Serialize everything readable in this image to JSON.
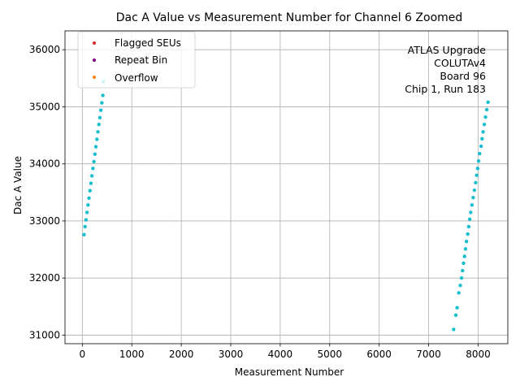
{
  "chart_data": {
    "type": "scatter",
    "title": "Dac A Value vs Measurement Number for Channel 6 Zoomed",
    "xlabel": "Measurement Number",
    "ylabel": "Dac A Value",
    "xlim": [
      -350,
      8600
    ],
    "ylim": [
      30850,
      36330
    ],
    "xticks": [
      0,
      1000,
      2000,
      3000,
      4000,
      5000,
      6000,
      7000,
      8000
    ],
    "yticks": [
      31000,
      32000,
      33000,
      34000,
      35000,
      36000
    ],
    "grid": true,
    "legend_position": "upper-left",
    "legend": [
      {
        "label": "Flagged SEUs",
        "color": "#d62728"
      },
      {
        "label": "Repeat Bin",
        "color": "#7f007f"
      },
      {
        "label": "Overflow",
        "color": "#ff7f0e"
      }
    ],
    "annotation_lines": [
      "ATLAS Upgrade",
      "COLUTAv4",
      "Board 96",
      "Chip 1, Run 183"
    ],
    "series": [
      {
        "color": "#17becf",
        "x": [
          35,
          55,
          75,
          95,
          115,
          135,
          155,
          175,
          195,
          215,
          235,
          255,
          275,
          295,
          315,
          335,
          355,
          375,
          395,
          415,
          425,
          7505,
          7550,
          7575,
          7610,
          7640,
          7665,
          7685,
          7705,
          7725,
          7745,
          7765,
          7790,
          7810,
          7830,
          7850,
          7875,
          7900,
          7925,
          7950,
          7970,
          7990,
          8010,
          8030,
          8060,
          8080,
          8100,
          8125,
          8150,
          8175,
          8200
        ],
        "y": [
          32760,
          32900,
          33020,
          33150,
          33280,
          33400,
          33530,
          33660,
          33790,
          33920,
          34040,
          34170,
          34300,
          34430,
          34560,
          34690,
          34810,
          34940,
          35070,
          35200,
          35440,
          31100,
          31350,
          31480,
          31740,
          31870,
          32000,
          32130,
          32260,
          32380,
          32510,
          32640,
          32770,
          32900,
          33030,
          33150,
          33280,
          33410,
          33540,
          33670,
          33800,
          33920,
          34050,
          34180,
          34310,
          34440,
          34560,
          34690,
          34820,
          34950,
          35080
        ]
      }
    ]
  }
}
